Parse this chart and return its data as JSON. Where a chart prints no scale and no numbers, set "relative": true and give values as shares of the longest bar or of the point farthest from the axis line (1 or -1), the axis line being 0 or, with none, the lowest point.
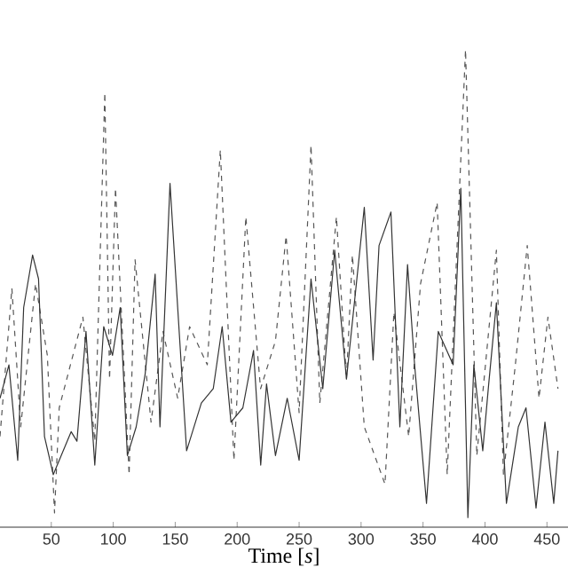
{
  "chart_data": {
    "type": "line",
    "xlabel": "Time [*s*]",
    "relative": true,
    "xlim": [
      8.6,
      467
    ],
    "xticks": [
      50,
      100,
      150,
      200,
      250,
      300,
      350,
      400,
      450
    ],
    "series": [
      {
        "color": "#555555",
        "line_style": "dashed",
        "x": [
          8.6,
          18.2,
          25.3,
          37.3,
          46.8,
          52.6,
          56.4,
          75.5,
          85.1,
          93.2,
          97,
          101.8,
          112.8,
          117.6,
          130.5,
          140.1,
          152,
          161.6,
          175.9,
          186.4,
          197.4,
          207,
          218.9,
          230.9,
          239.5,
          250,
          259.6,
          266.7,
          280.1,
          288.2,
          293,
          302.6,
          319.3,
          326.5,
          338.4,
          348,
          361.4,
          369.5,
          384.3,
          393.4,
          409.2,
          414.9,
          424.5,
          434.1,
          443.6,
          450.8,
          458.9
        ],
        "values": [
          0.19,
          0.5,
          0.21,
          0.51,
          0.36,
          0.03,
          0.25,
          0.44,
          0.18,
          0.91,
          0.31,
          0.71,
          0.11,
          0.56,
          0.22,
          0.41,
          0.27,
          0.42,
          0.34,
          0.79,
          0.14,
          0.65,
          0.29,
          0.39,
          0.61,
          0.24,
          0.8,
          0.26,
          0.65,
          0.31,
          0.57,
          0.21,
          0.09,
          0.45,
          0.19,
          0.51,
          0.68,
          0.11,
          1.0,
          0.15,
          0.58,
          0.11,
          0.34,
          0.59,
          0.27,
          0.44,
          0.29
        ]
      },
      {
        "color": "#333333",
        "line_style": "solid",
        "x": [
          8.6,
          15.8,
          22.9,
          27.7,
          34.9,
          39.7,
          44.5,
          51.6,
          66,
          70.7,
          78,
          85.1,
          92.3,
          99.4,
          105.6,
          111.4,
          118.5,
          125.7,
          133.8,
          137.7,
          145.8,
          152,
          159.2,
          171.1,
          180.7,
          187.9,
          195,
          204.6,
          213.2,
          219,
          223.7,
          230.9,
          240.4,
          250,
          259.6,
          269.1,
          278.7,
          288.2,
          302.6,
          309.7,
          314.5,
          324.1,
          331.3,
          337.5,
          343.2,
          352.8,
          362.3,
          374.3,
          380.5,
          386.2,
          391,
          398.2,
          403,
          409.2,
          417.3,
          426.9,
          433.1,
          441.2,
          448.4,
          455.5,
          458.9
        ],
        "values": [
          0.27,
          0.34,
          0.14,
          0.46,
          0.57,
          0.52,
          0.19,
          0.11,
          0.2,
          0.18,
          0.41,
          0.13,
          0.42,
          0.36,
          0.46,
          0.15,
          0.21,
          0.32,
          0.53,
          0.21,
          0.72,
          0.46,
          0.16,
          0.26,
          0.29,
          0.42,
          0.22,
          0.25,
          0.37,
          0.13,
          0.3,
          0.15,
          0.27,
          0.14,
          0.52,
          0.29,
          0.58,
          0.31,
          0.67,
          0.35,
          0.59,
          0.66,
          0.21,
          0.55,
          0.34,
          0.05,
          0.41,
          0.34,
          0.71,
          0.02,
          0.34,
          0.16,
          0.3,
          0.47,
          0.05,
          0.21,
          0.25,
          0.04,
          0.22,
          0.05,
          0.16
        ]
      }
    ]
  }
}
